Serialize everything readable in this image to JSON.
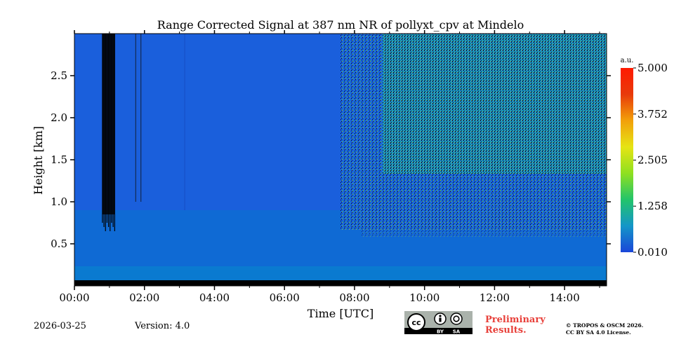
{
  "chart_data": {
    "type": "heatmap",
    "title": "Range Corrected Signal at 387 nm NR of pollyxt_cpv at Mindelo",
    "xlabel": "Time [UTC]",
    "ylabel": "Height [km]",
    "xlim_hours": [
      0,
      15.2
    ],
    "ylim_km": [
      0,
      3.0
    ],
    "x_ticks": [
      {
        "value": 0,
        "label": "00:00"
      },
      {
        "value": 2,
        "label": "02:00"
      },
      {
        "value": 4,
        "label": "04:00"
      },
      {
        "value": 6,
        "label": "06:00"
      },
      {
        "value": 8,
        "label": "08:00"
      },
      {
        "value": 10,
        "label": "10:00"
      },
      {
        "value": 12,
        "label": "12:00"
      },
      {
        "value": 14,
        "label": "14:00"
      }
    ],
    "y_ticks": [
      {
        "value": 0.5,
        "label": "0.5"
      },
      {
        "value": 1.0,
        "label": "1.0"
      },
      {
        "value": 1.5,
        "label": "1.5"
      },
      {
        "value": 2.0,
        "label": "2.0"
      },
      {
        "value": 2.5,
        "label": "2.5"
      }
    ],
    "colorbar": {
      "unit": "a.u.",
      "min": 0.01,
      "max": 5.0,
      "ticks": [
        {
          "value": 0.01,
          "label": "0.010"
        },
        {
          "value": 1.258,
          "label": "1.258"
        },
        {
          "value": 2.505,
          "label": "2.505"
        },
        {
          "value": 3.752,
          "label": "3.752"
        },
        {
          "value": 5.0,
          "label": "5.000"
        }
      ],
      "colors": [
        "#1a46d9",
        "#1496c8",
        "#22c46a",
        "#8fe020",
        "#e6e414",
        "#f2a00a",
        "#e83a0a",
        "#ff1a00"
      ]
    },
    "features": {
      "cloud_time_range_hours": [
        0.8,
        1.15
      ],
      "cloud_top_km": 3.0,
      "cloud_base_km": 0.85,
      "thin_streaks_hours": [
        1.75,
        1.9,
        3.15
      ],
      "daylight_noise_start_hours": 7.6,
      "background_color": "#1a5fdc",
      "near_surface_color": "#0c6ed2"
    }
  },
  "footer": {
    "date": "2026-03-25",
    "version": "Version: 4.0",
    "preliminary_line1": "Preliminary",
    "preliminary_line2": "Results.",
    "copyright_line1": "© TROPOS & OSCM 2026.",
    "copyright_line2": "CC BY SA 4.0 License.",
    "license_badge": {
      "cc": "cc",
      "by": "BY",
      "sa": "SA"
    }
  }
}
